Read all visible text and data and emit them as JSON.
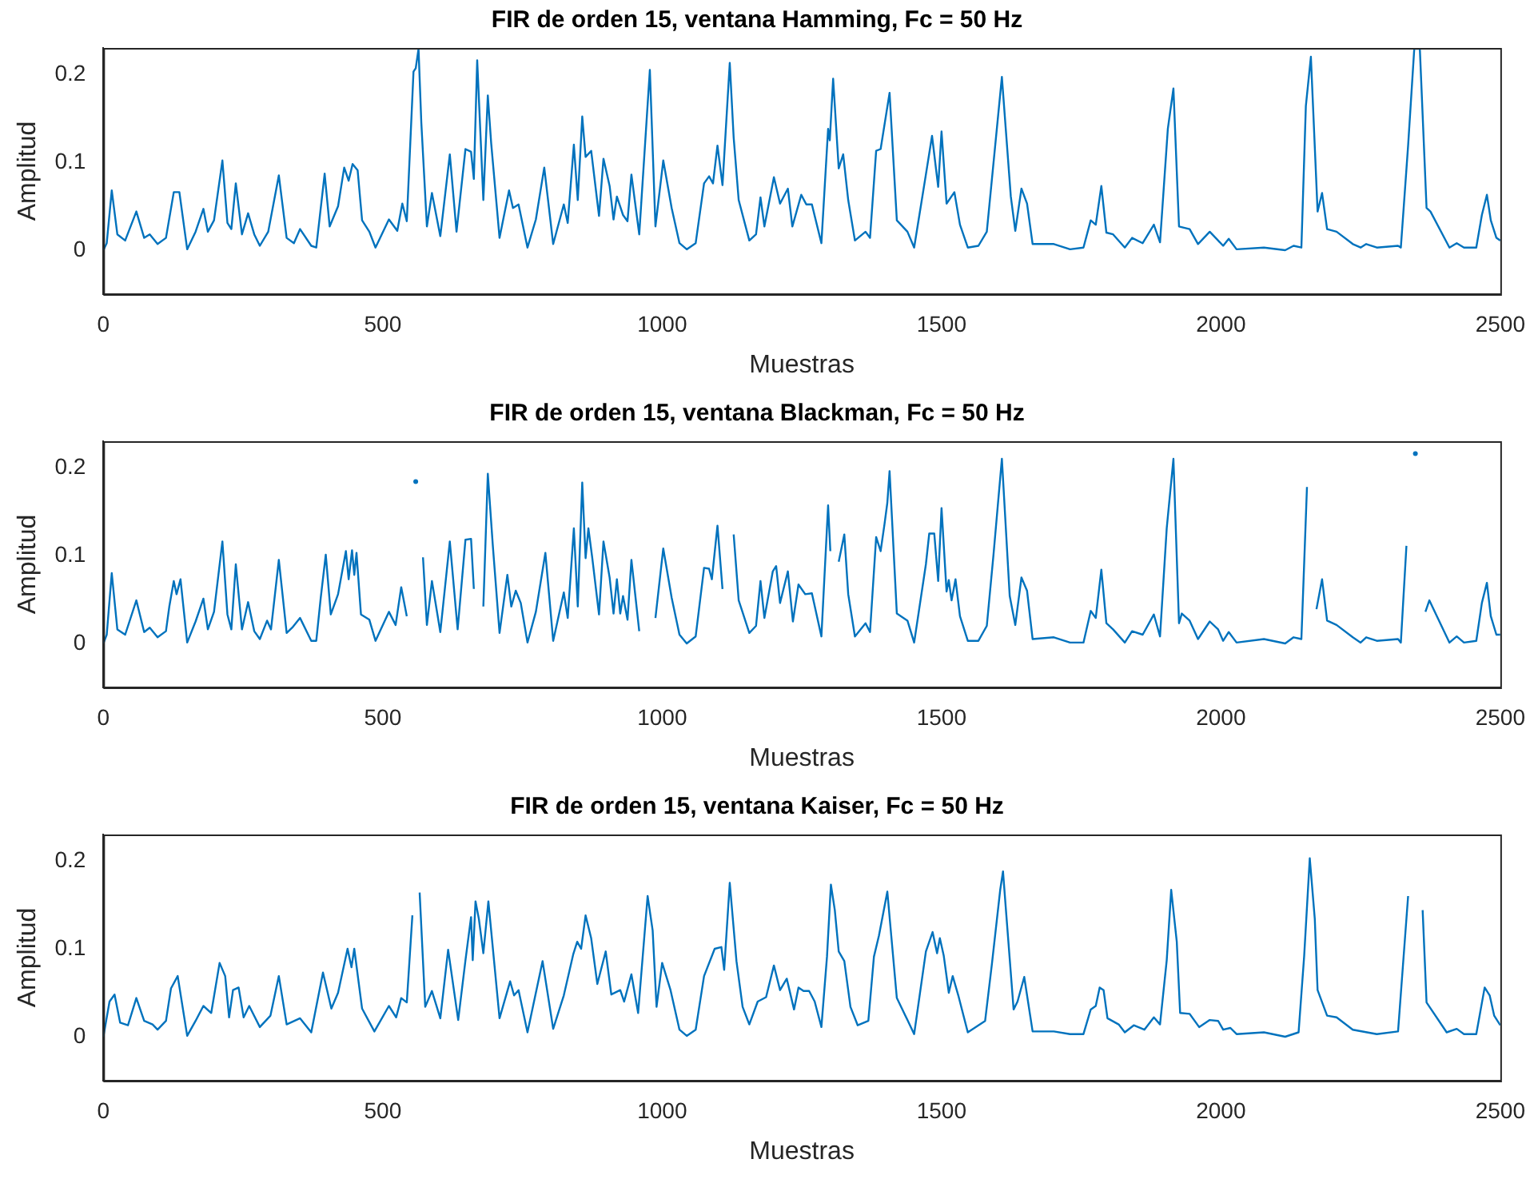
{
  "chart_data": [
    {
      "type": "line",
      "title": "FIR de orden 15, ventana Hamming, Fc = 50 Hz",
      "xlabel": "Muestras",
      "ylabel": "Amplitud",
      "xlim": [
        0,
        2500
      ],
      "xticks": [
        0,
        500,
        1000,
        1500,
        2000,
        2500
      ],
      "ylim": [
        -0.05,
        0.23
      ],
      "yticks": [
        0,
        0.1,
        0.2
      ],
      "grid": false,
      "legend": false,
      "x": [
        0,
        6,
        15,
        25,
        39,
        59,
        73,
        83,
        97,
        112,
        126,
        136,
        150,
        165,
        179,
        187,
        198,
        213,
        222,
        229,
        237,
        248,
        259,
        270,
        280,
        295,
        314,
        328,
        341,
        352,
        372,
        381,
        396,
        405,
        420,
        431,
        439,
        446,
        455,
        463,
        476,
        487,
        511,
        526,
        535,
        543,
        555,
        559,
        564,
        569,
        579,
        588,
        603,
        620,
        632,
        648,
        658,
        663,
        669,
        680,
        688,
        694,
        709,
        726,
        733,
        743,
        759,
        774,
        789,
        805,
        824,
        831,
        842,
        849,
        857,
        863,
        873,
        887,
        895,
        906,
        913,
        919,
        930,
        938,
        945,
        959,
        978,
        988,
        1002,
        1017,
        1031,
        1044,
        1060,
        1075,
        1084,
        1091,
        1099,
        1108,
        1121,
        1128,
        1137,
        1156,
        1168,
        1176,
        1183,
        1200,
        1211,
        1225,
        1233,
        1249,
        1258,
        1268,
        1285,
        1297,
        1300,
        1306,
        1316,
        1324,
        1333,
        1345,
        1364,
        1372,
        1383,
        1391,
        1407,
        1420,
        1439,
        1451,
        1472,
        1483,
        1494,
        1500,
        1509,
        1523,
        1533,
        1547,
        1566,
        1581,
        1608,
        1624,
        1632,
        1643,
        1653,
        1663,
        1701,
        1730,
        1754,
        1767,
        1776,
        1786,
        1795,
        1807,
        1828,
        1841,
        1860,
        1880,
        1891,
        1905,
        1915,
        1925,
        1944,
        1959,
        1980,
        1995,
        2004,
        2014,
        2028,
        2077,
        2115,
        2130,
        2144,
        2152,
        2161,
        2173,
        2181,
        2190,
        2207,
        2236,
        2250,
        2260,
        2279,
        2317,
        2322,
        2335,
        2346,
        2356,
        2368,
        2375,
        2409,
        2422,
        2435,
        2457,
        2467,
        2476,
        2483,
        2493,
        2500
      ],
      "series": [
        {
          "color": "#0072bd",
          "values": [
            0,
            0.008,
            0.068,
            0.018,
            0.011,
            0.044,
            0.014,
            0.018,
            0.007,
            0.014,
            0.066,
            0.066,
            0.001,
            0.021,
            0.047,
            0.021,
            0.034,
            0.102,
            0.031,
            0.024,
            0.076,
            0.018,
            0.042,
            0.018,
            0.005,
            0.021,
            0.085,
            0.014,
            0.008,
            0.024,
            0.005,
            0.003,
            0.087,
            0.027,
            0.05,
            0.094,
            0.079,
            0.098,
            0.091,
            0.034,
            0.021,
            0.003,
            0.035,
            0.022,
            0.053,
            0.033,
            0.203,
            0.207,
            0.229,
            0.145,
            0.027,
            0.065,
            0.016,
            0.109,
            0.021,
            0.115,
            0.112,
            0.081,
            0.216,
            0.057,
            0.176,
            0.122,
            0.014,
            0.068,
            0.048,
            0.052,
            0.003,
            0.035,
            0.094,
            0.007,
            0.052,
            0.031,
            0.12,
            0.057,
            0.152,
            0.106,
            0.113,
            0.039,
            0.104,
            0.073,
            0.035,
            0.061,
            0.04,
            0.033,
            0.086,
            0.018,
            0.205,
            0.027,
            0.102,
            0.048,
            0.008,
            0.001,
            0.008,
            0.076,
            0.084,
            0.076,
            0.119,
            0.074,
            0.213,
            0.128,
            0.057,
            0.011,
            0.018,
            0.06,
            0.027,
            0.083,
            0.053,
            0.07,
            0.027,
            0.063,
            0.052,
            0.052,
            0.008,
            0.138,
            0.125,
            0.195,
            0.093,
            0.109,
            0.057,
            0.011,
            0.021,
            0.014,
            0.113,
            0.115,
            0.179,
            0.034,
            0.021,
            0.003,
            0.086,
            0.13,
            0.072,
            0.135,
            0.053,
            0.066,
            0.029,
            0.003,
            0.005,
            0.021,
            0.197,
            0.061,
            0.022,
            0.07,
            0.053,
            0.007,
            0.007,
            0.001,
            0.003,
            0.034,
            0.029,
            0.073,
            0.02,
            0.018,
            0.003,
            0.014,
            0.008,
            0.029,
            0.009,
            0.138,
            0.184,
            0.027,
            0.024,
            0.007,
            0.021,
            0.011,
            0.005,
            0.013,
            0.001,
            0.003,
            0,
            0.005,
            0.003,
            0.164,
            0.22,
            0.044,
            0.065,
            0.024,
            0.021,
            0.007,
            0.003,
            0.007,
            0.003,
            0.005,
            0.003,
            0.119,
            0.229,
            0.229,
            0.048,
            0.044,
            0.003,
            0.008,
            0.003,
            0.003,
            0.04,
            0.063,
            0.034,
            0.014,
            0.011
          ]
        }
      ]
    },
    {
      "type": "line",
      "title": "FIR de orden 15, ventana Blackman, Fc = 50 Hz",
      "xlabel": "Muestras",
      "ylabel": "Amplitud",
      "xlim": [
        0,
        2500
      ],
      "xticks": [
        0,
        500,
        1000,
        1500,
        2000,
        2500
      ],
      "ylim": [
        -0.05,
        0.23
      ],
      "yticks": [
        0,
        0.1,
        0.2
      ],
      "grid": false,
      "legend": false,
      "x": [
        0,
        6,
        15,
        25,
        39,
        59,
        73,
        83,
        97,
        112,
        118,
        126,
        131,
        138,
        150,
        165,
        179,
        187,
        198,
        213,
        222,
        229,
        237,
        248,
        259,
        270,
        280,
        293,
        300,
        314,
        328,
        338,
        352,
        372,
        381,
        389,
        398,
        407,
        420,
        434,
        439,
        445,
        449,
        453,
        461,
        476,
        487,
        511,
        523,
        533,
        543,
        555,
        559,
        564,
        572,
        579,
        588,
        603,
        620,
        634,
        648,
        658,
        663,
        669,
        680,
        688,
        697,
        709,
        723,
        730,
        738,
        747,
        759,
        774,
        791,
        805,
        824,
        831,
        842,
        849,
        857,
        863,
        868,
        875,
        887,
        895,
        906,
        913,
        919,
        925,
        930,
        938,
        945,
        959,
        978,
        988,
        1002,
        1017,
        1031,
        1044,
        1060,
        1075,
        1084,
        1089,
        1099,
        1108,
        1121,
        1128,
        1137,
        1156,
        1168,
        1176,
        1183,
        1198,
        1204,
        1211,
        1225,
        1234,
        1244,
        1256,
        1268,
        1285,
        1297,
        1301,
        1307,
        1316,
        1326,
        1333,
        1345,
        1364,
        1372,
        1383,
        1391,
        1398,
        1403,
        1407,
        1420,
        1439,
        1451,
        1472,
        1478,
        1487,
        1494,
        1500,
        1509,
        1513,
        1518,
        1525,
        1533,
        1547,
        1566,
        1581,
        1593,
        1608,
        1622,
        1632,
        1643,
        1653,
        1663,
        1701,
        1730,
        1754,
        1767,
        1776,
        1786,
        1795,
        1807,
        1828,
        1841,
        1860,
        1880,
        1891,
        1903,
        1915,
        1925,
        1930,
        1944,
        1959,
        1980,
        1995,
        2004,
        2014,
        2028,
        2077,
        2115,
        2130,
        2144,
        2154,
        2161,
        2171,
        2181,
        2190,
        2207,
        2236,
        2250,
        2260,
        2279,
        2317,
        2322,
        2332,
        2341,
        2348,
        2354,
        2366,
        2373,
        2409,
        2422,
        2435,
        2457,
        2467,
        2476,
        2483,
        2493,
        2500
      ],
      "series": [
        {
          "color": "#0072bd",
          "values": [
            0,
            0.01,
            0.08,
            0.016,
            0.01,
            0.049,
            0.013,
            0.018,
            0.007,
            0.014,
            0.042,
            0.071,
            0.056,
            0.073,
            0.001,
            0.025,
            0.051,
            0.016,
            0.036,
            0.116,
            0.033,
            0.016,
            0.09,
            0.016,
            0.047,
            0.014,
            0.005,
            0.026,
            0.016,
            0.095,
            0.012,
            0.018,
            0.029,
            0.003,
            0.003,
            0.052,
            0.101,
            0.033,
            0.056,
            0.105,
            0.073,
            0.106,
            0.078,
            0.103,
            0.033,
            0.027,
            0.003,
            0.036,
            0.021,
            0.064,
            0.031,
            null,
            0.184,
            null,
            0.098,
            0.021,
            0.071,
            0.013,
            0.116,
            0.016,
            0.118,
            0.119,
            0.062,
            null,
            0.042,
            0.193,
            0.111,
            0.012,
            0.078,
            0.042,
            0.06,
            0.046,
            0.001,
            0.036,
            0.103,
            0.003,
            0.058,
            0.029,
            0.131,
            0.042,
            0.183,
            0.097,
            0.131,
            0.097,
            0.033,
            0.116,
            0.075,
            0.034,
            0.073,
            0.034,
            0.054,
            0.027,
            0.095,
            0.014,
            null,
            0.029,
            0.108,
            0.052,
            0.01,
            0,
            0.008,
            0.086,
            0.085,
            0.073,
            0.134,
            0.062,
            null,
            0.124,
            0.049,
            0.012,
            0.02,
            0.071,
            0.029,
            0.082,
            0.088,
            0.046,
            0.082,
            0.025,
            0.067,
            0.056,
            0.057,
            0.008,
            0.157,
            0.105,
            null,
            0.093,
            0.124,
            0.056,
            0.008,
            0.023,
            0.013,
            0.121,
            0.105,
            0.136,
            0.16,
            0.196,
            0.034,
            0.026,
            0.001,
            0.09,
            0.125,
            0.125,
            0.071,
            0.154,
            0.059,
            0.072,
            0.049,
            0.073,
            0.031,
            0.003,
            0.003,
            0.02,
            0.101,
            0.21,
            0.054,
            0.021,
            0.075,
            0.06,
            0.005,
            0.007,
            0.001,
            0.001,
            0.037,
            0.029,
            0.084,
            0.023,
            0.016,
            0.001,
            0.014,
            0.01,
            0.033,
            0.008,
            0.131,
            0.21,
            0.023,
            0.034,
            0.026,
            0.005,
            0.025,
            0.016,
            0.003,
            0.013,
            0.001,
            0.005,
            0,
            0.007,
            0.005,
            0.178,
            null,
            0.039,
            0.073,
            0.026,
            0.021,
            0.007,
            0.001,
            0.007,
            0.003,
            0.005,
            0.001,
            0.111,
            null,
            0.216,
            null,
            0.036,
            0.049,
            0.001,
            0.008,
            0.001,
            0.003,
            0.046,
            0.069,
            0.031,
            0.01,
            0.01
          ]
        }
      ]
    },
    {
      "type": "line",
      "title": "FIR de orden 15, ventana Kaiser, Fc = 50 Hz",
      "xlabel": "Muestras",
      "ylabel": "Amplitud",
      "xlim": [
        0,
        2500
      ],
      "xticks": [
        0,
        500,
        1000,
        1500,
        2000,
        2500
      ],
      "ylim": [
        -0.05,
        0.23
      ],
      "yticks": [
        0,
        0.1,
        0.2
      ],
      "grid": false,
      "legend": false,
      "x": [
        0,
        11,
        20,
        30,
        44,
        59,
        73,
        88,
        97,
        112,
        121,
        133,
        150,
        165,
        179,
        193,
        208,
        218,
        225,
        232,
        242,
        251,
        261,
        280,
        299,
        314,
        328,
        352,
        372,
        393,
        408,
        420,
        437,
        444,
        449,
        463,
        485,
        511,
        524,
        533,
        543,
        553,
        559,
        566,
        576,
        588,
        603,
        617,
        635,
        648,
        658,
        661,
        666,
        672,
        680,
        689,
        709,
        728,
        735,
        743,
        759,
        786,
        805,
        824,
        841,
        848,
        855,
        863,
        873,
        884,
        899,
        909,
        925,
        932,
        945,
        957,
        974,
        983,
        990,
        1000,
        1015,
        1031,
        1044,
        1060,
        1075,
        1094,
        1106,
        1111,
        1121,
        1133,
        1144,
        1156,
        1171,
        1186,
        1200,
        1211,
        1223,
        1236,
        1244,
        1253,
        1263,
        1273,
        1285,
        1295,
        1302,
        1309,
        1316,
        1326,
        1337,
        1350,
        1369,
        1379,
        1388,
        1403,
        1410,
        1420,
        1439,
        1451,
        1472,
        1484,
        1492,
        1497,
        1504,
        1513,
        1520,
        1530,
        1547,
        1578,
        1590,
        1605,
        1610,
        1616,
        1629,
        1636,
        1648,
        1663,
        1701,
        1730,
        1754,
        1767,
        1776,
        1783,
        1790,
        1797,
        1817,
        1828,
        1844,
        1863,
        1880,
        1891,
        1903,
        1911,
        1921,
        1927,
        1944,
        1961,
        1980,
        1995,
        2004,
        2017,
        2028,
        2077,
        2115,
        2139,
        2149,
        2159,
        2168,
        2173,
        2190,
        2207,
        2236,
        2279,
        2317,
        2335,
        2346,
        2354,
        2361,
        2368,
        2404,
        2422,
        2435,
        2457,
        2472,
        2481,
        2489,
        2500
      ],
      "series": [
        {
          "color": "#0072bd",
          "values": [
            0,
            0.04,
            0.048,
            0.016,
            0.013,
            0.044,
            0.018,
            0.014,
            0.008,
            0.018,
            0.055,
            0.069,
            0.001,
            0.018,
            0.035,
            0.027,
            0.084,
            0.069,
            0.022,
            0.053,
            0.056,
            0.022,
            0.035,
            0.011,
            0.024,
            0.069,
            0.014,
            0.021,
            0.005,
            0.073,
            0.032,
            0.05,
            0.1,
            0.079,
            0.1,
            0.032,
            0.006,
            0.035,
            0.022,
            0.044,
            0.039,
            0.138,
            null,
            0.164,
            0.034,
            0.052,
            0.021,
            0.099,
            0.019,
            0.087,
            0.136,
            0.087,
            0.154,
            0.134,
            0.095,
            0.154,
            0.021,
            0.063,
            0.047,
            0.053,
            0.005,
            0.086,
            0.009,
            0.047,
            0.094,
            0.108,
            0.1,
            0.138,
            0.112,
            0.06,
            0.097,
            0.048,
            0.053,
            0.04,
            0.071,
            0.027,
            0.16,
            0.121,
            0.034,
            0.084,
            0.053,
            0.008,
            0.001,
            0.008,
            0.069,
            0.1,
            0.102,
            0.076,
            0.175,
            0.086,
            0.034,
            0.014,
            0.04,
            0.045,
            0.081,
            0.053,
            0.066,
            0.031,
            0.056,
            0.052,
            0.052,
            0.04,
            0.011,
            0.091,
            0.173,
            0.144,
            0.097,
            0.086,
            0.034,
            0.013,
            0.018,
            0.091,
            0.115,
            0.165,
            0.115,
            0.044,
            0.019,
            0.003,
            0.097,
            0.119,
            0.095,
            0.112,
            0.092,
            0.05,
            0.069,
            0.047,
            0.005,
            0.018,
            0.082,
            0.167,
            0.188,
            0.138,
            0.031,
            0.04,
            0.068,
            0.006,
            0.006,
            0.003,
            0.003,
            0.031,
            0.035,
            0.056,
            0.053,
            0.021,
            0.014,
            0.005,
            0.013,
            0.008,
            0.022,
            0.014,
            0.087,
            0.167,
            0.108,
            0.027,
            0.026,
            0.011,
            0.019,
            0.018,
            0.008,
            0.01,
            0.003,
            0.005,
            0,
            0.005,
            0.092,
            0.203,
            0.134,
            0.053,
            0.024,
            0.022,
            0.008,
            0.003,
            0.006,
            0.16,
            null,
            null,
            0.144,
            0.039,
            0.005,
            0.009,
            0.003,
            0.003,
            0.056,
            0.047,
            0.024,
            0.013
          ]
        }
      ]
    }
  ]
}
